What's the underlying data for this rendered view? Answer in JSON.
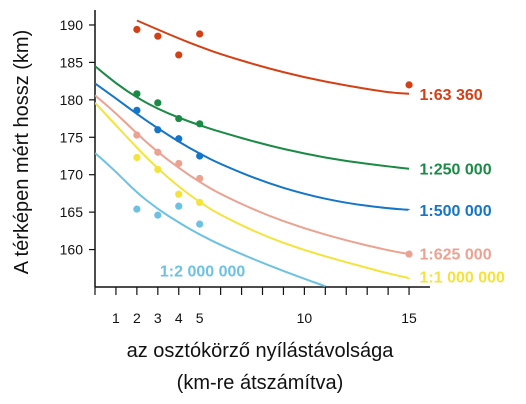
{
  "chart_data": {
    "type": "line",
    "ylabel": "A térképen mért hossz (km)",
    "xlabel": "az osztókörző nyílástávolsága",
    "xlabel2": "(km-re átszámítva)",
    "xlim": [
      0,
      16
    ],
    "ylim": [
      155,
      192
    ],
    "xticks": [
      1,
      2,
      3,
      4,
      5,
      10,
      15
    ],
    "yticks": [
      160,
      165,
      170,
      175,
      180,
      185,
      190
    ],
    "series": [
      {
        "name": "1:63 360",
        "color": "#d44015",
        "points": {
          "x": [
            2,
            3,
            4,
            5,
            15
          ],
          "y": [
            189.4,
            188.5,
            186.0,
            188.8,
            182.0
          ]
        },
        "curve": {
          "x": [
            2,
            3,
            4,
            5,
            6,
            8,
            10,
            12,
            14,
            15
          ],
          "y": [
            190.6,
            189.4,
            188.2,
            187.1,
            186.1,
            184.4,
            183.0,
            181.9,
            181.0,
            180.8
          ]
        }
      },
      {
        "name": "1:250 000",
        "color": "#1a8a45",
        "points": {
          "x": [
            2,
            3,
            4,
            5
          ],
          "y": [
            180.8,
            179.6,
            177.5,
            176.8
          ]
        },
        "curve": {
          "x": [
            0,
            1,
            2,
            3,
            4,
            5,
            6,
            8,
            10,
            12,
            14,
            15
          ],
          "y": [
            184.5,
            182.2,
            180.3,
            178.8,
            177.6,
            176.6,
            175.7,
            174.1,
            172.8,
            171.8,
            171.1,
            170.8
          ]
        }
      },
      {
        "name": "1:500 000",
        "color": "#1575c6",
        "points": {
          "x": [
            2,
            3,
            4,
            5
          ],
          "y": [
            178.6,
            176.0,
            174.8,
            172.5
          ]
        },
        "curve": {
          "x": [
            0,
            1,
            2,
            3,
            4,
            5,
            6,
            8,
            10,
            12,
            14,
            15
          ],
          "y": [
            182.2,
            180.2,
            178.1,
            176.2,
            174.4,
            172.8,
            171.4,
            169.1,
            167.4,
            166.2,
            165.5,
            165.3
          ]
        }
      },
      {
        "name": "1:625 000",
        "color": "#eba291",
        "points": {
          "x": [
            2,
            3,
            4,
            5,
            15
          ],
          "y": [
            175.3,
            173.0,
            171.5,
            169.5,
            159.4
          ]
        },
        "curve": {
          "x": [
            0,
            1,
            2,
            3,
            4,
            5,
            6,
            8,
            10,
            12,
            14,
            15
          ],
          "y": [
            180.6,
            178.2,
            175.5,
            173.0,
            170.9,
            169.0,
            167.4,
            164.8,
            162.8,
            161.2,
            159.9,
            159.4
          ]
        }
      },
      {
        "name": "1:1 000 000",
        "color": "#f4e33a",
        "points": {
          "x": [
            2,
            3,
            4,
            5
          ],
          "y": [
            172.3,
            170.7,
            167.4,
            166.3
          ]
        },
        "curve": {
          "x": [
            0,
            1,
            2,
            3,
            4,
            5,
            6,
            8,
            10,
            12,
            14,
            15
          ],
          "y": [
            179.6,
            176.6,
            173.6,
            170.8,
            168.4,
            166.3,
            164.6,
            161.9,
            159.9,
            158.3,
            156.8,
            156.2
          ]
        }
      },
      {
        "name": "1:2 000 000",
        "color": "#6dc2e3",
        "points": {
          "x": [
            2,
            3,
            4,
            5
          ],
          "y": [
            165.4,
            164.6,
            165.8,
            163.4
          ]
        },
        "curve": {
          "x": [
            0,
            1,
            2,
            3,
            4,
            5,
            6,
            8,
            10,
            11
          ],
          "y": [
            172.9,
            170.4,
            167.6,
            165.4,
            163.6,
            162.0,
            160.6,
            158.2,
            156.1,
            155.1
          ]
        }
      }
    ]
  }
}
